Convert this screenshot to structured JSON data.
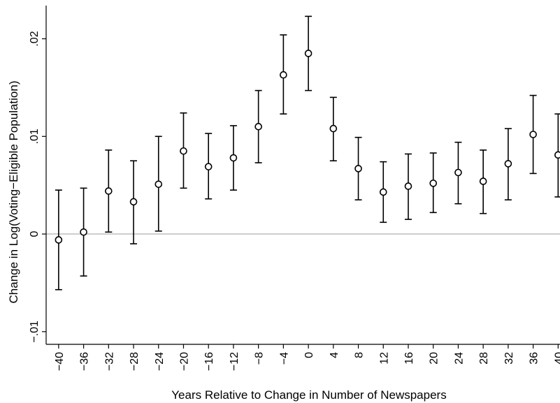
{
  "chart_data": {
    "type": "scatter",
    "xlabel": "Years Relative to Change in Number of Newspapers",
    "ylabel": "Change in Log(Voting−Eligible Population)",
    "x_ticks": [
      -40,
      -36,
      -32,
      -28,
      -24,
      -20,
      -16,
      -12,
      -8,
      -4,
      0,
      4,
      8,
      12,
      16,
      20,
      24,
      28,
      32,
      36,
      40
    ],
    "x_tick_labels": [
      "−40",
      "−36",
      "−32",
      "−28",
      "−24",
      "−20",
      "−16",
      "−12",
      "−8",
      "−4",
      "0",
      "4",
      "8",
      "12",
      "16",
      "20",
      "24",
      "28",
      "32",
      "36",
      "40"
    ],
    "y_ticks": [
      -0.01,
      0,
      0.01,
      0.02
    ],
    "y_tick_labels": [
      "−.01",
      "0",
      ".01",
      ".02"
    ],
    "xlim": [
      -42,
      40.3
    ],
    "ylim": [
      -0.0113,
      0.0234
    ],
    "reference_line_y": 0,
    "points": [
      {
        "x": -40,
        "y": -0.0006,
        "lo": -0.0057,
        "hi": 0.0045
      },
      {
        "x": -36,
        "y": 0.0002,
        "lo": -0.0043,
        "hi": 0.0047
      },
      {
        "x": -32,
        "y": 0.0044,
        "lo": 0.0002,
        "hi": 0.0086
      },
      {
        "x": -28,
        "y": 0.0033,
        "lo": -0.001,
        "hi": 0.0075
      },
      {
        "x": -24,
        "y": 0.0051,
        "lo": 0.0003,
        "hi": 0.01
      },
      {
        "x": -20,
        "y": 0.0085,
        "lo": 0.0047,
        "hi": 0.0124
      },
      {
        "x": -16,
        "y": 0.0069,
        "lo": 0.0036,
        "hi": 0.0103
      },
      {
        "x": -12,
        "y": 0.0078,
        "lo": 0.0045,
        "hi": 0.0111
      },
      {
        "x": -8,
        "y": 0.011,
        "lo": 0.0073,
        "hi": 0.0147
      },
      {
        "x": -4,
        "y": 0.0163,
        "lo": 0.0123,
        "hi": 0.0204
      },
      {
        "x": 0,
        "y": 0.0185,
        "lo": 0.0147,
        "hi": 0.0223
      },
      {
        "x": 4,
        "y": 0.0108,
        "lo": 0.0075,
        "hi": 0.014
      },
      {
        "x": 8,
        "y": 0.0067,
        "lo": 0.0035,
        "hi": 0.0099
      },
      {
        "x": 12,
        "y": 0.0043,
        "lo": 0.0012,
        "hi": 0.0074
      },
      {
        "x": 16,
        "y": 0.0049,
        "lo": 0.0015,
        "hi": 0.0082
      },
      {
        "x": 20,
        "y": 0.0052,
        "lo": 0.0022,
        "hi": 0.0083
      },
      {
        "x": 24,
        "y": 0.0063,
        "lo": 0.0031,
        "hi": 0.0094
      },
      {
        "x": 28,
        "y": 0.0054,
        "lo": 0.0021,
        "hi": 0.0086
      },
      {
        "x": 32,
        "y": 0.0072,
        "lo": 0.0035,
        "hi": 0.0108
      },
      {
        "x": 36,
        "y": 0.0102,
        "lo": 0.0062,
        "hi": 0.0142
      },
      {
        "x": 40,
        "y": 0.0081,
        "lo": 0.0038,
        "hi": 0.0123
      }
    ],
    "grid": false,
    "legend": "none",
    "colors": {
      "marker": "#000000",
      "errorbar": "#000000",
      "reference_line": "#bdbdbd",
      "axis": "#000000"
    }
  }
}
